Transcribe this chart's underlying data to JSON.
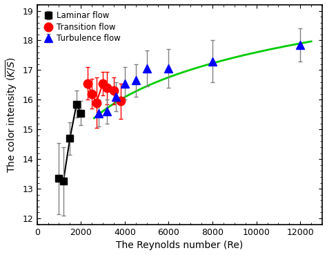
{
  "laminar_x": [
    1000,
    1200,
    1500,
    1800,
    2000
  ],
  "laminar_y": [
    13.35,
    13.25,
    14.7,
    15.85,
    15.55
  ],
  "laminar_yerr": [
    1.2,
    1.15,
    0.55,
    0.45,
    0.4
  ],
  "transition_x": [
    2300,
    2500,
    2700,
    3000,
    3200,
    3500,
    3800
  ],
  "transition_y": [
    16.55,
    16.2,
    15.9,
    16.55,
    16.4,
    16.3,
    15.95
  ],
  "transition_yerr": [
    0.55,
    0.5,
    0.85,
    0.4,
    0.55,
    0.45,
    0.6
  ],
  "turbulence_x": [
    2800,
    3200,
    3600,
    4000,
    4500,
    5000,
    6000,
    8000,
    12000
  ],
  "turbulence_y": [
    15.55,
    15.6,
    16.1,
    16.55,
    16.65,
    17.05,
    17.05,
    17.3,
    17.85
  ],
  "turbulence_yerr": [
    0.45,
    0.4,
    0.5,
    0.55,
    0.55,
    0.6,
    0.65,
    0.7,
    0.55
  ],
  "fit_a": 1.648,
  "fit_b": 2.42,
  "fit_x_start": 2600,
  "fit_x_end": 12500,
  "xlim": [
    0,
    13000
  ],
  "ylim": [
    11.8,
    19.2
  ],
  "xticks": [
    0,
    2000,
    4000,
    6000,
    8000,
    10000,
    12000
  ],
  "yticks": [
    12,
    13,
    14,
    15,
    16,
    17,
    18,
    19
  ],
  "xlabel": "The Reynolds number (Re)",
  "ylabel": "The color intensity ($\\overline{K/S}$)",
  "laminar_color": "#000000",
  "transition_color": "#ff0000",
  "turbulence_color": "#0000ff",
  "fit_color": "#00cc00",
  "bg_color": "#ffffff",
  "figsize": [
    4.74,
    3.69
  ],
  "dpi": 100
}
